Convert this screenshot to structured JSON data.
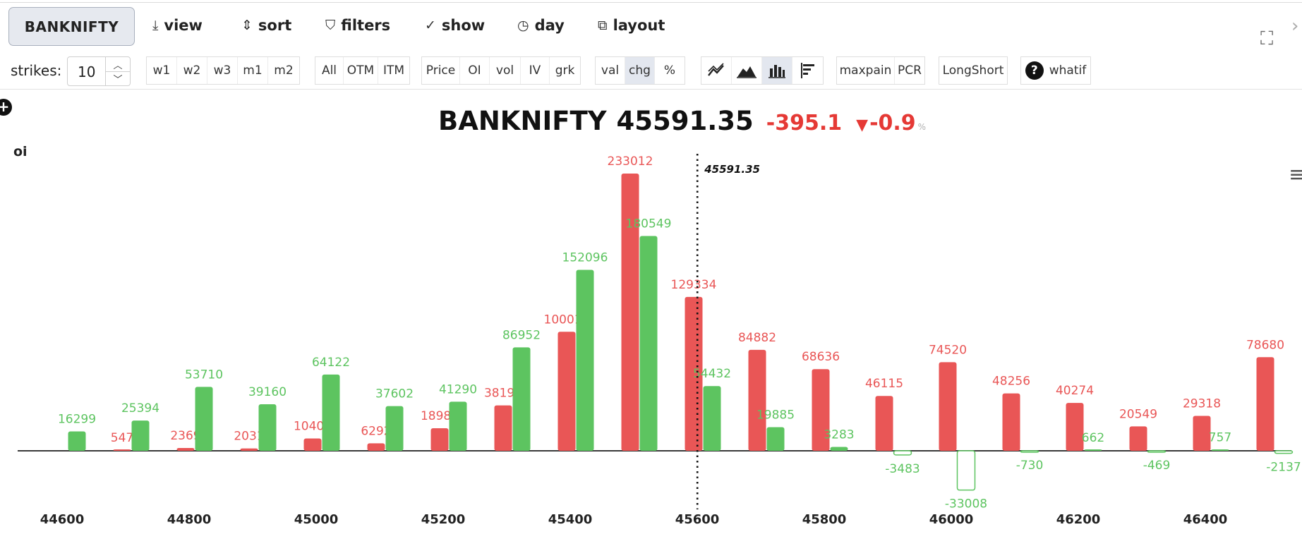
{
  "toolbar": {
    "symbol": "BANKNIFTY",
    "menu": [
      {
        "icon": "download-icon",
        "glyph": "⤓",
        "label": "view"
      },
      {
        "icon": "sort-icon",
        "glyph": "⇕",
        "label": "sort"
      },
      {
        "icon": "filter-icon",
        "glyph": "⛉",
        "label": "filters"
      },
      {
        "icon": "check-icon",
        "glyph": "✓",
        "label": "show"
      },
      {
        "icon": "clock-icon",
        "glyph": "◷",
        "label": "day"
      },
      {
        "icon": "puzzle-icon",
        "glyph": "⧉",
        "label": "layout"
      }
    ],
    "strikes_label": "strikes:",
    "strikes_value": "10",
    "expiry_buttons": [
      "w1",
      "w2",
      "w3",
      "m1",
      "m2"
    ],
    "moneyness_buttons": [
      "All",
      "OTM",
      "ITM"
    ],
    "metric_buttons": [
      "Price",
      "OI",
      "vol",
      "IV",
      "grk"
    ],
    "display_buttons": [
      "val",
      "chg",
      "%"
    ],
    "display_active": "chg",
    "analysis_buttons": [
      "maxpain",
      "PCR"
    ],
    "longshort_label": "LongShort",
    "whatif_label": "whatif"
  },
  "header": {
    "symbol": "BANKNIFTY",
    "price": "45591.35",
    "change": "-395.1",
    "change_pct": "-0.9",
    "pct_sign": "%"
  },
  "chart_data": {
    "type": "bar",
    "ylabel": "oi",
    "categories": [
      44600,
      44700,
      44800,
      44900,
      45000,
      45100,
      45200,
      45300,
      45400,
      45500,
      45600,
      45700,
      45800,
      45900,
      46000,
      46100,
      46200,
      46300,
      46400,
      46500
    ],
    "x_tick_labels": [
      "44600",
      "44800",
      "45000",
      "45200",
      "45400",
      "45600",
      "45800",
      "46000",
      "46200",
      "46400"
    ],
    "spot": 45591.35,
    "spot_label": "45591.35",
    "series": [
      {
        "color": "#e95656",
        "values": [
          null,
          547,
          2369,
          2031,
          10407,
          6292,
          18988,
          38193,
          100019,
          233012,
          129334,
          84882,
          68636,
          46115,
          74520,
          48256,
          40274,
          20549,
          29318,
          78680
        ]
      },
      {
        "color": "#5dc460",
        "values": [
          16299,
          25394,
          53710,
          39160,
          64122,
          37602,
          41290,
          86952,
          152096,
          180549,
          54432,
          19885,
          3283,
          -3483,
          -33008,
          -730,
          662,
          -469,
          757,
          -2137
        ]
      }
    ],
    "ylim": [
      -36000,
      245000
    ]
  }
}
